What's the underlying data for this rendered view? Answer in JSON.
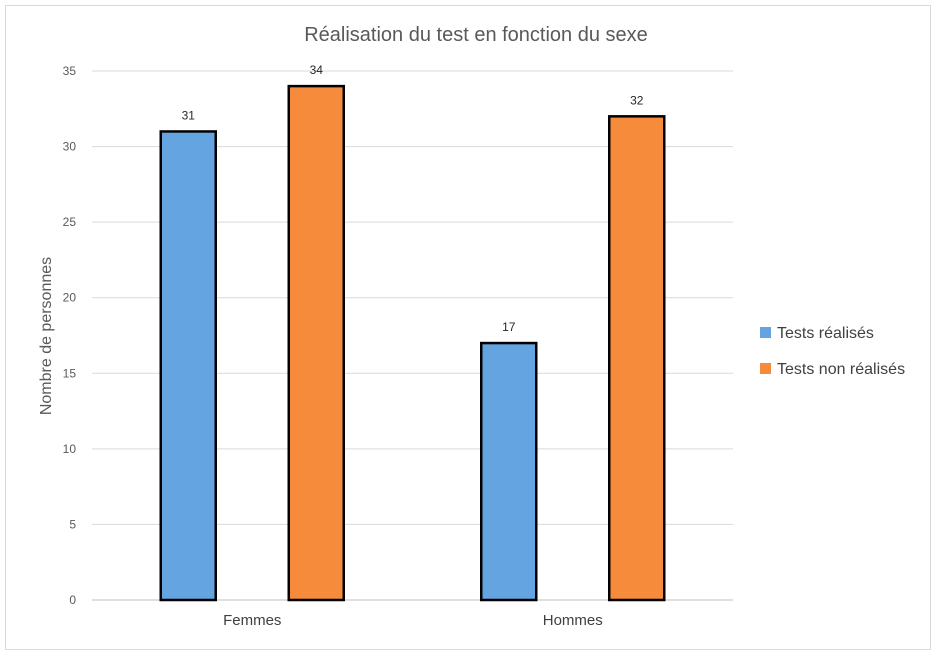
{
  "chart_data": {
    "type": "bar",
    "title": "Réalisation du test en fonction du sexe",
    "xlabel": "",
    "ylabel": "Nombre de personnes",
    "categories": [
      "Femmes",
      "Hommes"
    ],
    "series": [
      {
        "name": "Tests réalisés",
        "values": [
          31,
          17
        ],
        "color": "#64a4e0"
      },
      {
        "name": "Tests non réalisés",
        "values": [
          34,
          32
        ],
        "color": "#f68b3c"
      }
    ],
    "ylim": [
      0,
      35
    ],
    "yticks": [
      0,
      5,
      10,
      15,
      20,
      25,
      30,
      35
    ],
    "grid": true,
    "legend_position": "right",
    "data_labels": true
  }
}
